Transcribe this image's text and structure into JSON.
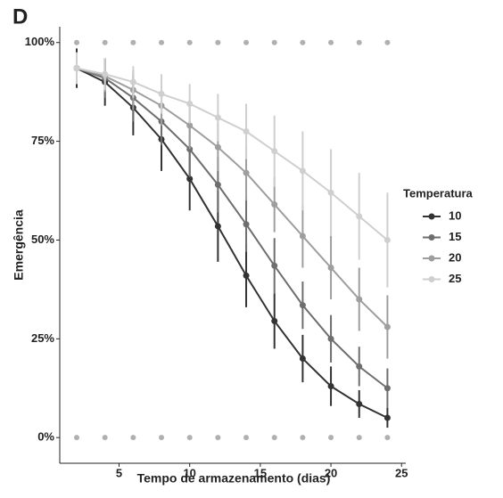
{
  "chart_data": {
    "type": "line",
    "panel_label": "D",
    "x_label": "Tempo de armazenamento (dias)",
    "y_label": "Emergência",
    "legend_title": "Temperatura",
    "x": [
      2,
      4,
      6,
      8,
      10,
      12,
      14,
      16,
      18,
      20,
      22,
      24
    ],
    "series": [
      {
        "name": "10",
        "color": "#333333",
        "values": [
          93.5,
          90,
          83.5,
          75.5,
          65.5,
          53.5,
          41,
          29.5,
          20,
          13,
          8.5,
          5
        ],
        "errors": [
          5,
          6,
          7,
          8,
          8,
          9,
          8,
          7,
          6,
          5,
          3.5,
          2.5
        ]
      },
      {
        "name": "15",
        "color": "#6e6e6e",
        "values": [
          93.5,
          91,
          86,
          80,
          73,
          64,
          54,
          43.5,
          33.5,
          25,
          18,
          12.5
        ],
        "errors": [
          4,
          5,
          6,
          6,
          7,
          7,
          7,
          7,
          6,
          6,
          5,
          5
        ]
      },
      {
        "name": "20",
        "color": "#9e9e9e",
        "values": [
          93.5,
          91.5,
          88,
          84,
          79,
          73.5,
          67,
          59,
          51,
          43,
          35,
          28
        ],
        "errors": [
          4,
          4,
          5,
          5,
          6,
          6,
          7,
          7,
          8,
          8,
          8,
          8
        ]
      },
      {
        "name": "25",
        "color": "#cfcfcf",
        "values": [
          93.5,
          92,
          90,
          87,
          84.5,
          81,
          77.5,
          72.5,
          67.5,
          62,
          56,
          50
        ],
        "errors": [
          4,
          4,
          4,
          5,
          5,
          6,
          7,
          9,
          10,
          11,
          11,
          12
        ]
      }
    ],
    "observations": {
      "color": "#b0b0b0",
      "x": [
        2,
        4,
        6,
        8,
        10,
        12,
        14,
        16,
        18,
        20,
        22,
        24,
        2,
        4,
        6,
        8,
        10,
        12,
        14,
        16,
        18,
        20,
        22,
        24
      ],
      "values": [
        0,
        0,
        0,
        0,
        0,
        0,
        0,
        0,
        0,
        0,
        0,
        0,
        100,
        100,
        100,
        100,
        100,
        100,
        100,
        100,
        100,
        100,
        100,
        100
      ]
    },
    "xlim": [
      0.8,
      25.3
    ],
    "xticks": [
      5,
      10,
      15,
      20,
      25
    ],
    "ylim": [
      -6.5,
      104
    ],
    "yticks": [
      {
        "value": 0,
        "label": "0%"
      },
      {
        "value": 25,
        "label": "25%"
      },
      {
        "value": 50,
        "label": "50%"
      },
      {
        "value": 75,
        "label": "75%"
      },
      {
        "value": 100,
        "label": "100%"
      }
    ],
    "grid": false,
    "legend": "right"
  }
}
